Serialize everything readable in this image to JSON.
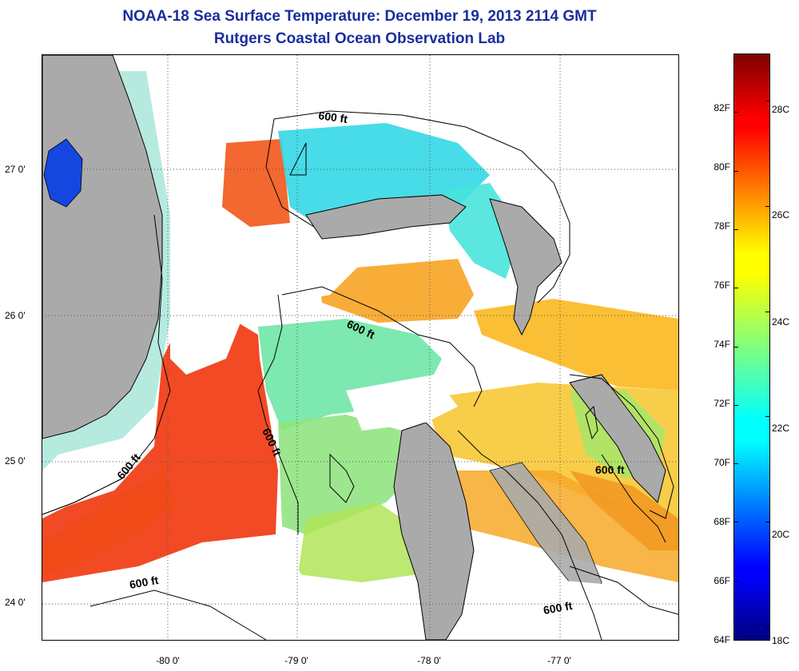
{
  "title": {
    "line1": "NOAA-18 Sea Surface Temperature:  December 19, 2013 2114 GMT",
    "line2": "Rutgers Coastal Ocean Observation Lab"
  },
  "map": {
    "lat_ticks": [
      {
        "value": 27,
        "label": "27 0'"
      },
      {
        "value": 26,
        "label": "26 0'"
      },
      {
        "value": 25,
        "label": "25 0'"
      },
      {
        "value": 24,
        "label": "24 0'"
      }
    ],
    "lon_ticks": [
      {
        "value": -80,
        "label": "-80 0'"
      },
      {
        "value": -79,
        "label": "-79 0'"
      },
      {
        "value": -78,
        "label": "-78 0'"
      },
      {
        "value": -77,
        "label": "-77 0'"
      }
    ],
    "contour_label": "600 ft",
    "colors": {
      "land": "#aaaaaa",
      "cloud": "#ffffff",
      "coast": "#000000"
    }
  },
  "colorbar": {
    "colormap": "jet",
    "range_f": [
      64,
      84
    ],
    "fahrenheit_labels": [
      "82F",
      "80F",
      "78F",
      "76F",
      "74F",
      "72F",
      "70F",
      "68F",
      "66F",
      "64F"
    ],
    "celsius_labels": [
      "28C",
      "26C",
      "24C",
      "22C",
      "20C",
      "18C"
    ]
  }
}
